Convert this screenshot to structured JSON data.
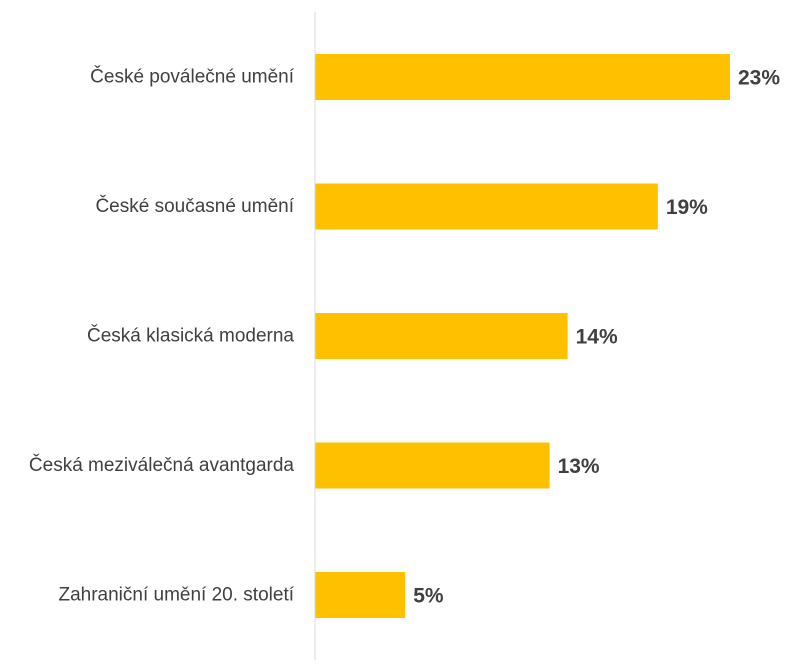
{
  "chart_data": {
    "type": "bar",
    "orientation": "horizontal",
    "categories": [
      "České poválečné umění",
      "České současné umění",
      "Česká klasická moderna",
      "Česká meziválečná avantgarda",
      "Zahraniční umění 20. století"
    ],
    "values": [
      23,
      19,
      14,
      13,
      5
    ],
    "value_labels": [
      "23%",
      "19%",
      "14%",
      "13%",
      "5%"
    ],
    "unit": "%",
    "xlim": [
      0,
      23
    ],
    "grid": false,
    "legend": "none",
    "colors": {
      "bar": "#FFC000",
      "axis": "#D9D9D9",
      "text": "#404040"
    }
  }
}
